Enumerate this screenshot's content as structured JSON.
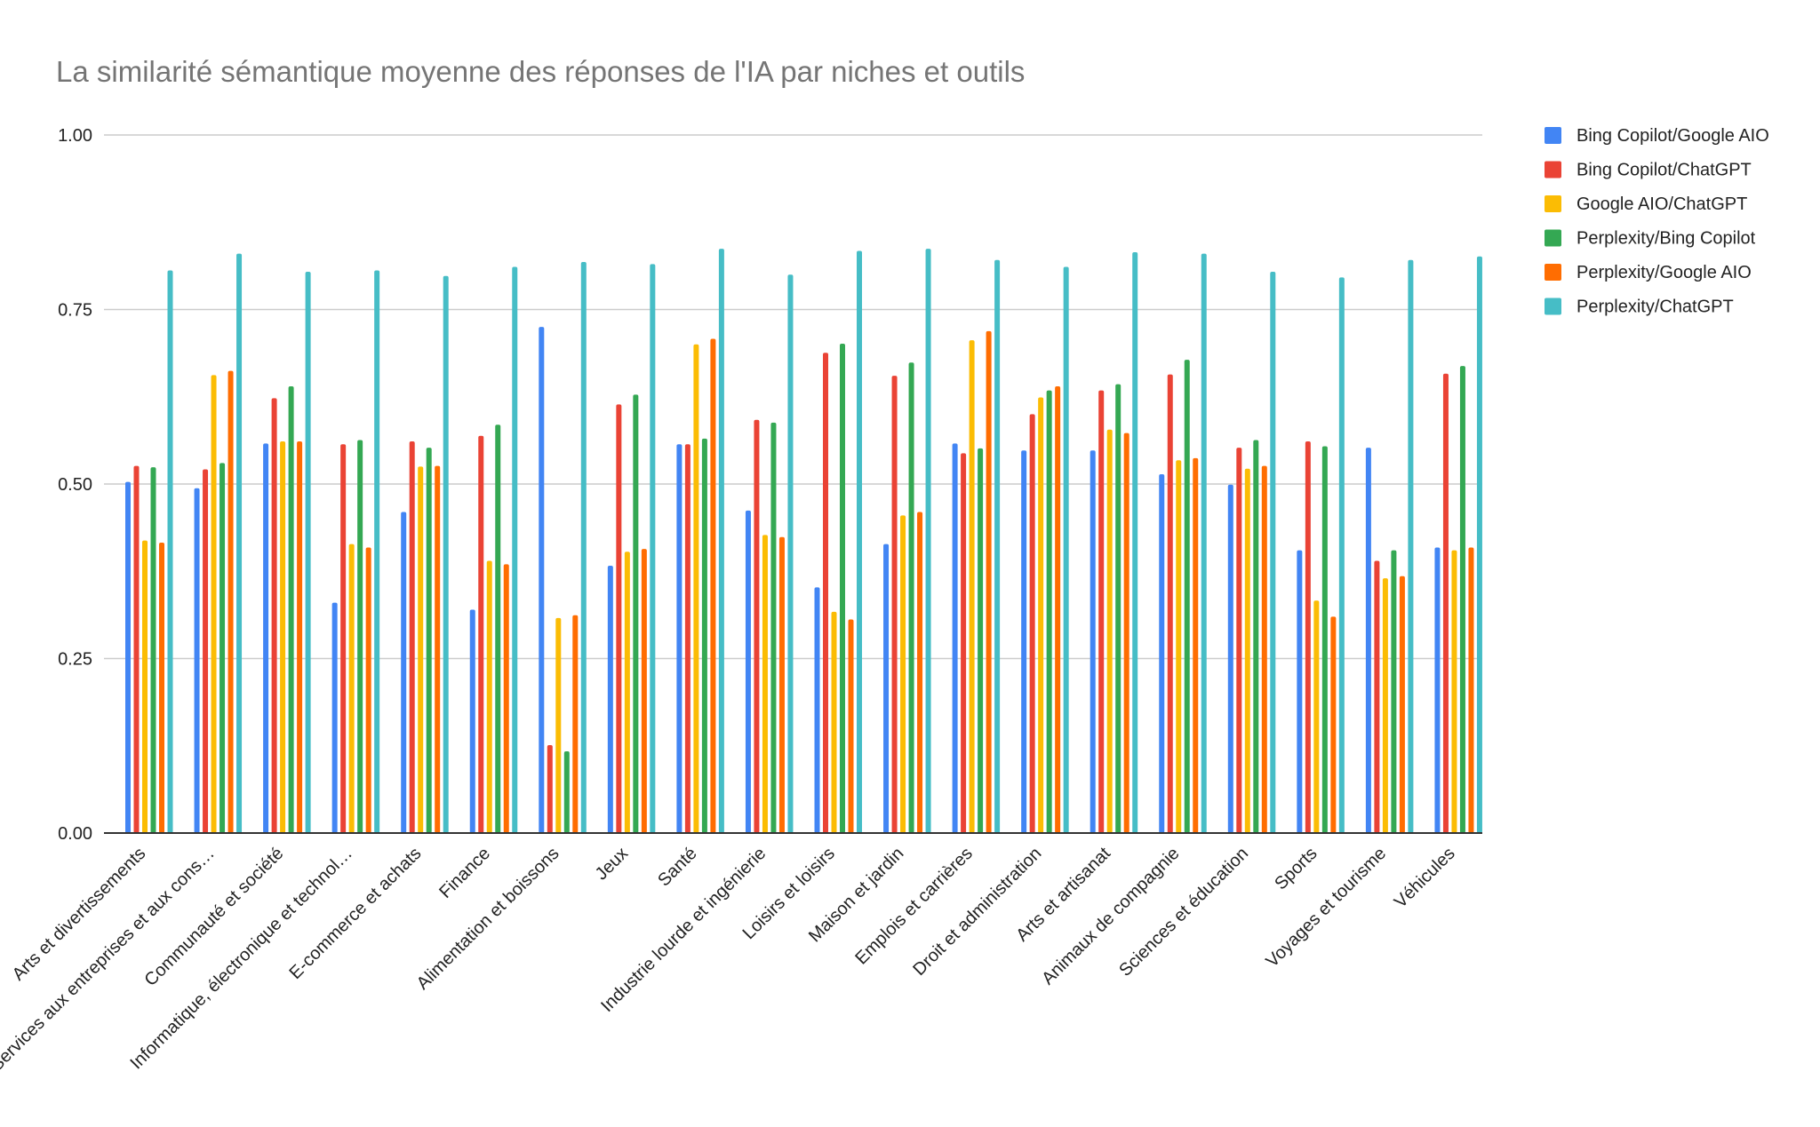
{
  "chart_data": {
    "type": "bar",
    "title": "La similarité sémantique moyenne des réponses de l'IA par niches et outils",
    "xlabel": "",
    "ylabel": "",
    "ylim": [
      0,
      1
    ],
    "yticks": [
      "0.00",
      "0.25",
      "0.50",
      "0.75",
      "1.00"
    ],
    "ytick_values": [
      0,
      0.25,
      0.5,
      0.75,
      1
    ],
    "grid": true,
    "legend_position": "right",
    "categories": [
      "Arts et divertissements",
      "Services aux entreprises et aux cons…",
      "Communauté et société",
      "Informatique, électronique et technol…",
      "E-commerce et achats",
      "Finance",
      "Alimentation et boissons",
      "Jeux",
      "Santé",
      "Industrie lourde et ingénierie",
      "Loisirs et loisirs",
      "Maison et jardin",
      "Emplois et carrières",
      "Droit et administration",
      "Arts et artisanat",
      "Animaux de compagnie",
      "Sciences et éducation",
      "Sports",
      "Voyages et tourisme",
      "Véhicules"
    ],
    "series": [
      {
        "name": "Bing Copilot/Google AIO",
        "color": "#4285F4",
        "values": [
          0.503,
          0.494,
          0.558,
          0.33,
          0.46,
          0.32,
          0.725,
          0.383,
          0.557,
          0.462,
          0.352,
          0.414,
          0.558,
          0.548,
          0.548,
          0.514,
          0.499,
          0.405,
          0.552,
          0.409
        ]
      },
      {
        "name": "Bing Copilot/ChatGPT",
        "color": "#EA4335",
        "values": [
          0.526,
          0.521,
          0.623,
          0.557,
          0.561,
          0.569,
          0.126,
          0.614,
          0.557,
          0.592,
          0.688,
          0.655,
          0.544,
          0.6,
          0.634,
          0.657,
          0.552,
          0.561,
          0.39,
          0.658
        ]
      },
      {
        "name": "Google AIO/ChatGPT",
        "color": "#FBBC04",
        "values": [
          0.419,
          0.656,
          0.561,
          0.414,
          0.525,
          0.39,
          0.308,
          0.403,
          0.7,
          0.427,
          0.317,
          0.455,
          0.706,
          0.624,
          0.578,
          0.534,
          0.522,
          0.333,
          0.365,
          0.405
        ]
      },
      {
        "name": "Perplexity/Bing Copilot",
        "color": "#34A853",
        "values": [
          0.524,
          0.53,
          0.64,
          0.563,
          0.552,
          0.585,
          0.117,
          0.628,
          0.565,
          0.588,
          0.701,
          0.674,
          0.551,
          0.634,
          0.643,
          0.678,
          0.563,
          0.554,
          0.405,
          0.669
        ]
      },
      {
        "name": "Perplexity/Google AIO",
        "color": "#FF6D01",
        "values": [
          0.416,
          0.662,
          0.561,
          0.409,
          0.526,
          0.385,
          0.312,
          0.407,
          0.708,
          0.424,
          0.306,
          0.46,
          0.719,
          0.64,
          0.573,
          0.537,
          0.526,
          0.31,
          0.368,
          0.409
        ]
      },
      {
        "name": "Perplexity/ChatGPT",
        "color": "#46BDC6",
        "values": [
          0.806,
          0.83,
          0.804,
          0.806,
          0.798,
          0.811,
          0.818,
          0.815,
          0.837,
          0.8,
          0.834,
          0.837,
          0.821,
          0.811,
          0.832,
          0.83,
          0.804,
          0.796,
          0.821,
          0.826
        ]
      }
    ]
  }
}
